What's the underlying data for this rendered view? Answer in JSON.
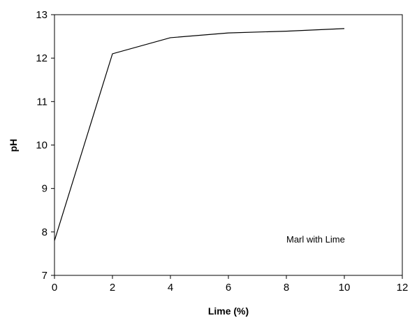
{
  "chart_data": {
    "type": "line",
    "title": "",
    "xlabel": "Lime (%)",
    "ylabel": "pH",
    "xlim": [
      0,
      12
    ],
    "ylim": [
      7,
      13
    ],
    "x_ticks": [
      "0",
      "2",
      "4",
      "6",
      "8",
      "10",
      "12"
    ],
    "y_ticks": [
      "7",
      "8",
      "9",
      "10",
      "11",
      "12",
      "13"
    ],
    "grid": false,
    "legend": "none",
    "annotation": "Marl with Lime",
    "series": [
      {
        "color": "#000000",
        "x": [
          0,
          2,
          4,
          6,
          8,
          10
        ],
        "y": [
          7.8,
          12.1,
          12.47,
          12.58,
          12.62,
          12.68
        ]
      }
    ]
  }
}
